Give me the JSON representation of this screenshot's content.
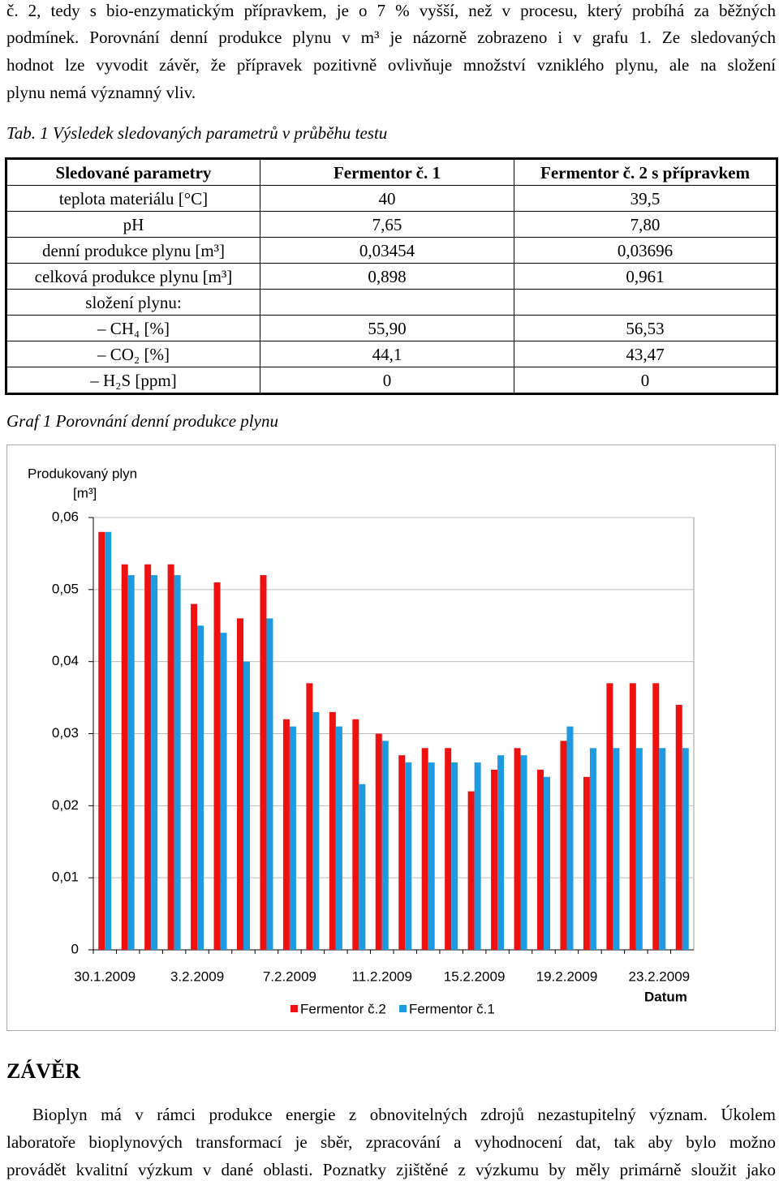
{
  "paragraph1": [
    "č. 2, tedy s bio-enzymatickým přípravkem, je o 7 % vyšší, než v procesu, který probíhá za běžných",
    "podmínek. Porovnání denní produkce plynu v m³ je názorně zobrazeno i v grafu 1. Ze sledovaných",
    "hodnot lze vyvodit závěr, že přípravek pozitivně ovlivňuje množství vzniklého plynu, ale na složení",
    "plynu nemá významný vliv."
  ],
  "caption_table": "Tab. 1 Výsledek sledovaných parametrů v průběhu testu",
  "table": {
    "header": [
      "Sledované parametry",
      "Fermentor č. 1",
      "Fermentor č. 2 s přípravkem"
    ],
    "rows": [
      [
        "teplota materiálu [°C]",
        "40",
        "39,5"
      ],
      [
        "pH",
        "7,65",
        "7,80"
      ],
      [
        "denní produkce plynu [m³]",
        "0,03454",
        "0,03696"
      ],
      [
        "celková produkce plynu [m³]",
        "0,898",
        "0,961"
      ],
      [
        "složení plynu:",
        null,
        null
      ],
      [
        "– CH₄ [%]",
        "55,90",
        "56,53"
      ],
      [
        "– CO₂ [%]",
        "44,1",
        "43,47"
      ],
      [
        "– H₂S [ppm]",
        "0",
        "0"
      ]
    ]
  },
  "caption_chart": "Graf 1 Porovnání denní produkce plynu",
  "chart_data": {
    "type": "bar",
    "ylabel": "Produkovaný plyn",
    "yunit": "[m³]",
    "xlabel": "Datum",
    "categories": [
      "30.1.2009",
      null,
      null,
      null,
      "3.2.2009",
      null,
      null,
      null,
      "7.2.2009",
      null,
      null,
      null,
      "11.2.2009",
      null,
      null,
      null,
      "15.2.2009",
      null,
      null,
      null,
      "19.2.2009",
      null,
      null,
      null,
      "23.2.2009",
      null
    ],
    "series": [
      {
        "name": "Fermentor č.2",
        "color": "#ee1111",
        "values": [
          0.058,
          0.0535,
          0.0535,
          0.0535,
          0.048,
          0.051,
          0.046,
          0.052,
          0.032,
          0.037,
          0.033,
          0.032,
          0.03,
          0.027,
          0.028,
          0.028,
          0.022,
          0.025,
          0.028,
          0.025,
          0.029,
          0.024,
          0.037,
          0.037,
          0.037,
          0.034
        ]
      },
      {
        "name": "Fermentor č.1",
        "color": "#1e9be0",
        "values": [
          0.058,
          0.052,
          0.052,
          0.052,
          0.045,
          0.044,
          0.04,
          0.046,
          0.031,
          0.033,
          0.031,
          0.023,
          0.029,
          0.026,
          0.026,
          0.026,
          0.026,
          0.027,
          0.027,
          0.024,
          0.031,
          0.028,
          0.028,
          0.028,
          0.028,
          0.028
        ]
      }
    ],
    "ylim": [
      0,
      0.06
    ],
    "yticks": [
      0,
      {
        "value": 0.01,
        "label": "0,01"
      },
      {
        "value": 0.02,
        "label": "0,02"
      },
      {
        "value": 0.03,
        "label": "0,03"
      },
      {
        "value": 0.04,
        "label": "0,04"
      },
      {
        "value": 0.05,
        "label": "0,05"
      },
      {
        "value": 0.06,
        "label": "0,06"
      }
    ],
    "grid": true,
    "legend": "bottom"
  },
  "heading": "ZÁVĚR",
  "paragraph2": [
    "Bioplyn má v rámci produkce energie z obnovitelných zdrojů nezastupitelný význam. Úkolem",
    "laboratoře bioplynových transformací je sběr, zpracování a vyhodnocení dat, tak aby bylo možno",
    "provádět kvalitní výzkum v dané oblasti. Poznatky zjištěné z výzkumu by měly primárně sloužit jako"
  ]
}
